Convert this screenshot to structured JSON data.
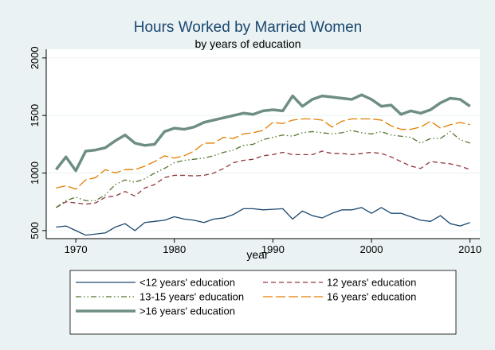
{
  "chart_data": {
    "type": "line",
    "title": "Hours Worked by Married Women",
    "subtitle": "by years of education",
    "x_label": "year",
    "x": [
      1968,
      1969,
      1970,
      1971,
      1972,
      1973,
      1974,
      1975,
      1976,
      1977,
      1978,
      1979,
      1980,
      1981,
      1982,
      1983,
      1984,
      1985,
      1986,
      1987,
      1988,
      1989,
      1990,
      1991,
      1992,
      1993,
      1994,
      1995,
      1996,
      1997,
      1998,
      1999,
      2000,
      2001,
      2002,
      2003,
      2004,
      2005,
      2006,
      2007,
      2008,
      2009,
      2010
    ],
    "xlim": [
      1967,
      2011
    ],
    "xticks": [
      1970,
      1980,
      1990,
      2000,
      2010
    ],
    "ylim": [
      430,
      2075
    ],
    "yticks": [
      500,
      1000,
      1500,
      2000
    ],
    "grid": true,
    "legend_position": "bottom",
    "series": [
      {
        "name": "<12 years' education",
        "color": "#1a476f",
        "line_style": "solid",
        "line_width": 1.3,
        "values": [
          530,
          540,
          500,
          460,
          470,
          480,
          530,
          560,
          500,
          570,
          580,
          590,
          620,
          600,
          590,
          570,
          600,
          610,
          640,
          690,
          690,
          680,
          685,
          690,
          600,
          670,
          630,
          610,
          650,
          680,
          680,
          700,
          650,
          700,
          650,
          650,
          620,
          590,
          580,
          630,
          560,
          540,
          570
        ]
      },
      {
        "name": "12 years' education",
        "color": "#90353b",
        "line_style": "dash",
        "line_width": 1.3,
        "values": [
          700,
          750,
          740,
          730,
          740,
          790,
          800,
          840,
          800,
          870,
          900,
          960,
          980,
          980,
          975,
          980,
          1000,
          1040,
          1090,
          1110,
          1120,
          1150,
          1160,
          1180,
          1160,
          1160,
          1160,
          1190,
          1170,
          1170,
          1160,
          1170,
          1180,
          1170,
          1140,
          1100,
          1060,
          1040,
          1100,
          1090,
          1080,
          1060,
          1030
        ]
      },
      {
        "name": "13-15 years' education",
        "color": "#55752f",
        "line_style": "dash-dot-dot",
        "line_width": 1.3,
        "values": [
          700,
          760,
          790,
          760,
          760,
          810,
          900,
          940,
          920,
          950,
          1000,
          1040,
          1090,
          1110,
          1120,
          1130,
          1150,
          1180,
          1200,
          1240,
          1250,
          1290,
          1310,
          1330,
          1320,
          1350,
          1360,
          1350,
          1340,
          1350,
          1370,
          1350,
          1340,
          1360,
          1330,
          1320,
          1310,
          1260,
          1300,
          1300,
          1360,
          1290,
          1260
        ]
      },
      {
        "name": "16 years' education",
        "color": "#e37e00",
        "line_style": "long-dash",
        "line_width": 1.3,
        "values": [
          870,
          890,
          860,
          940,
          960,
          1030,
          1000,
          1030,
          1030,
          1060,
          1100,
          1150,
          1130,
          1150,
          1190,
          1260,
          1260,
          1310,
          1300,
          1340,
          1350,
          1370,
          1440,
          1430,
          1460,
          1470,
          1470,
          1460,
          1400,
          1450,
          1470,
          1470,
          1470,
          1460,
          1410,
          1380,
          1380,
          1400,
          1450,
          1390,
          1420,
          1440,
          1420
        ]
      },
      {
        "name": ">16 years' education",
        "color": "#6e8e84",
        "line_style": "solid",
        "line_width": 3.5,
        "values": [
          1030,
          1140,
          1020,
          1190,
          1200,
          1220,
          1280,
          1330,
          1260,
          1240,
          1250,
          1360,
          1390,
          1380,
          1400,
          1440,
          1460,
          1480,
          1500,
          1520,
          1510,
          1540,
          1550,
          1540,
          1670,
          1580,
          1640,
          1670,
          1660,
          1650,
          1640,
          1680,
          1640,
          1580,
          1590,
          1510,
          1540,
          1520,
          1550,
          1610,
          1650,
          1640,
          1580
        ]
      }
    ]
  }
}
